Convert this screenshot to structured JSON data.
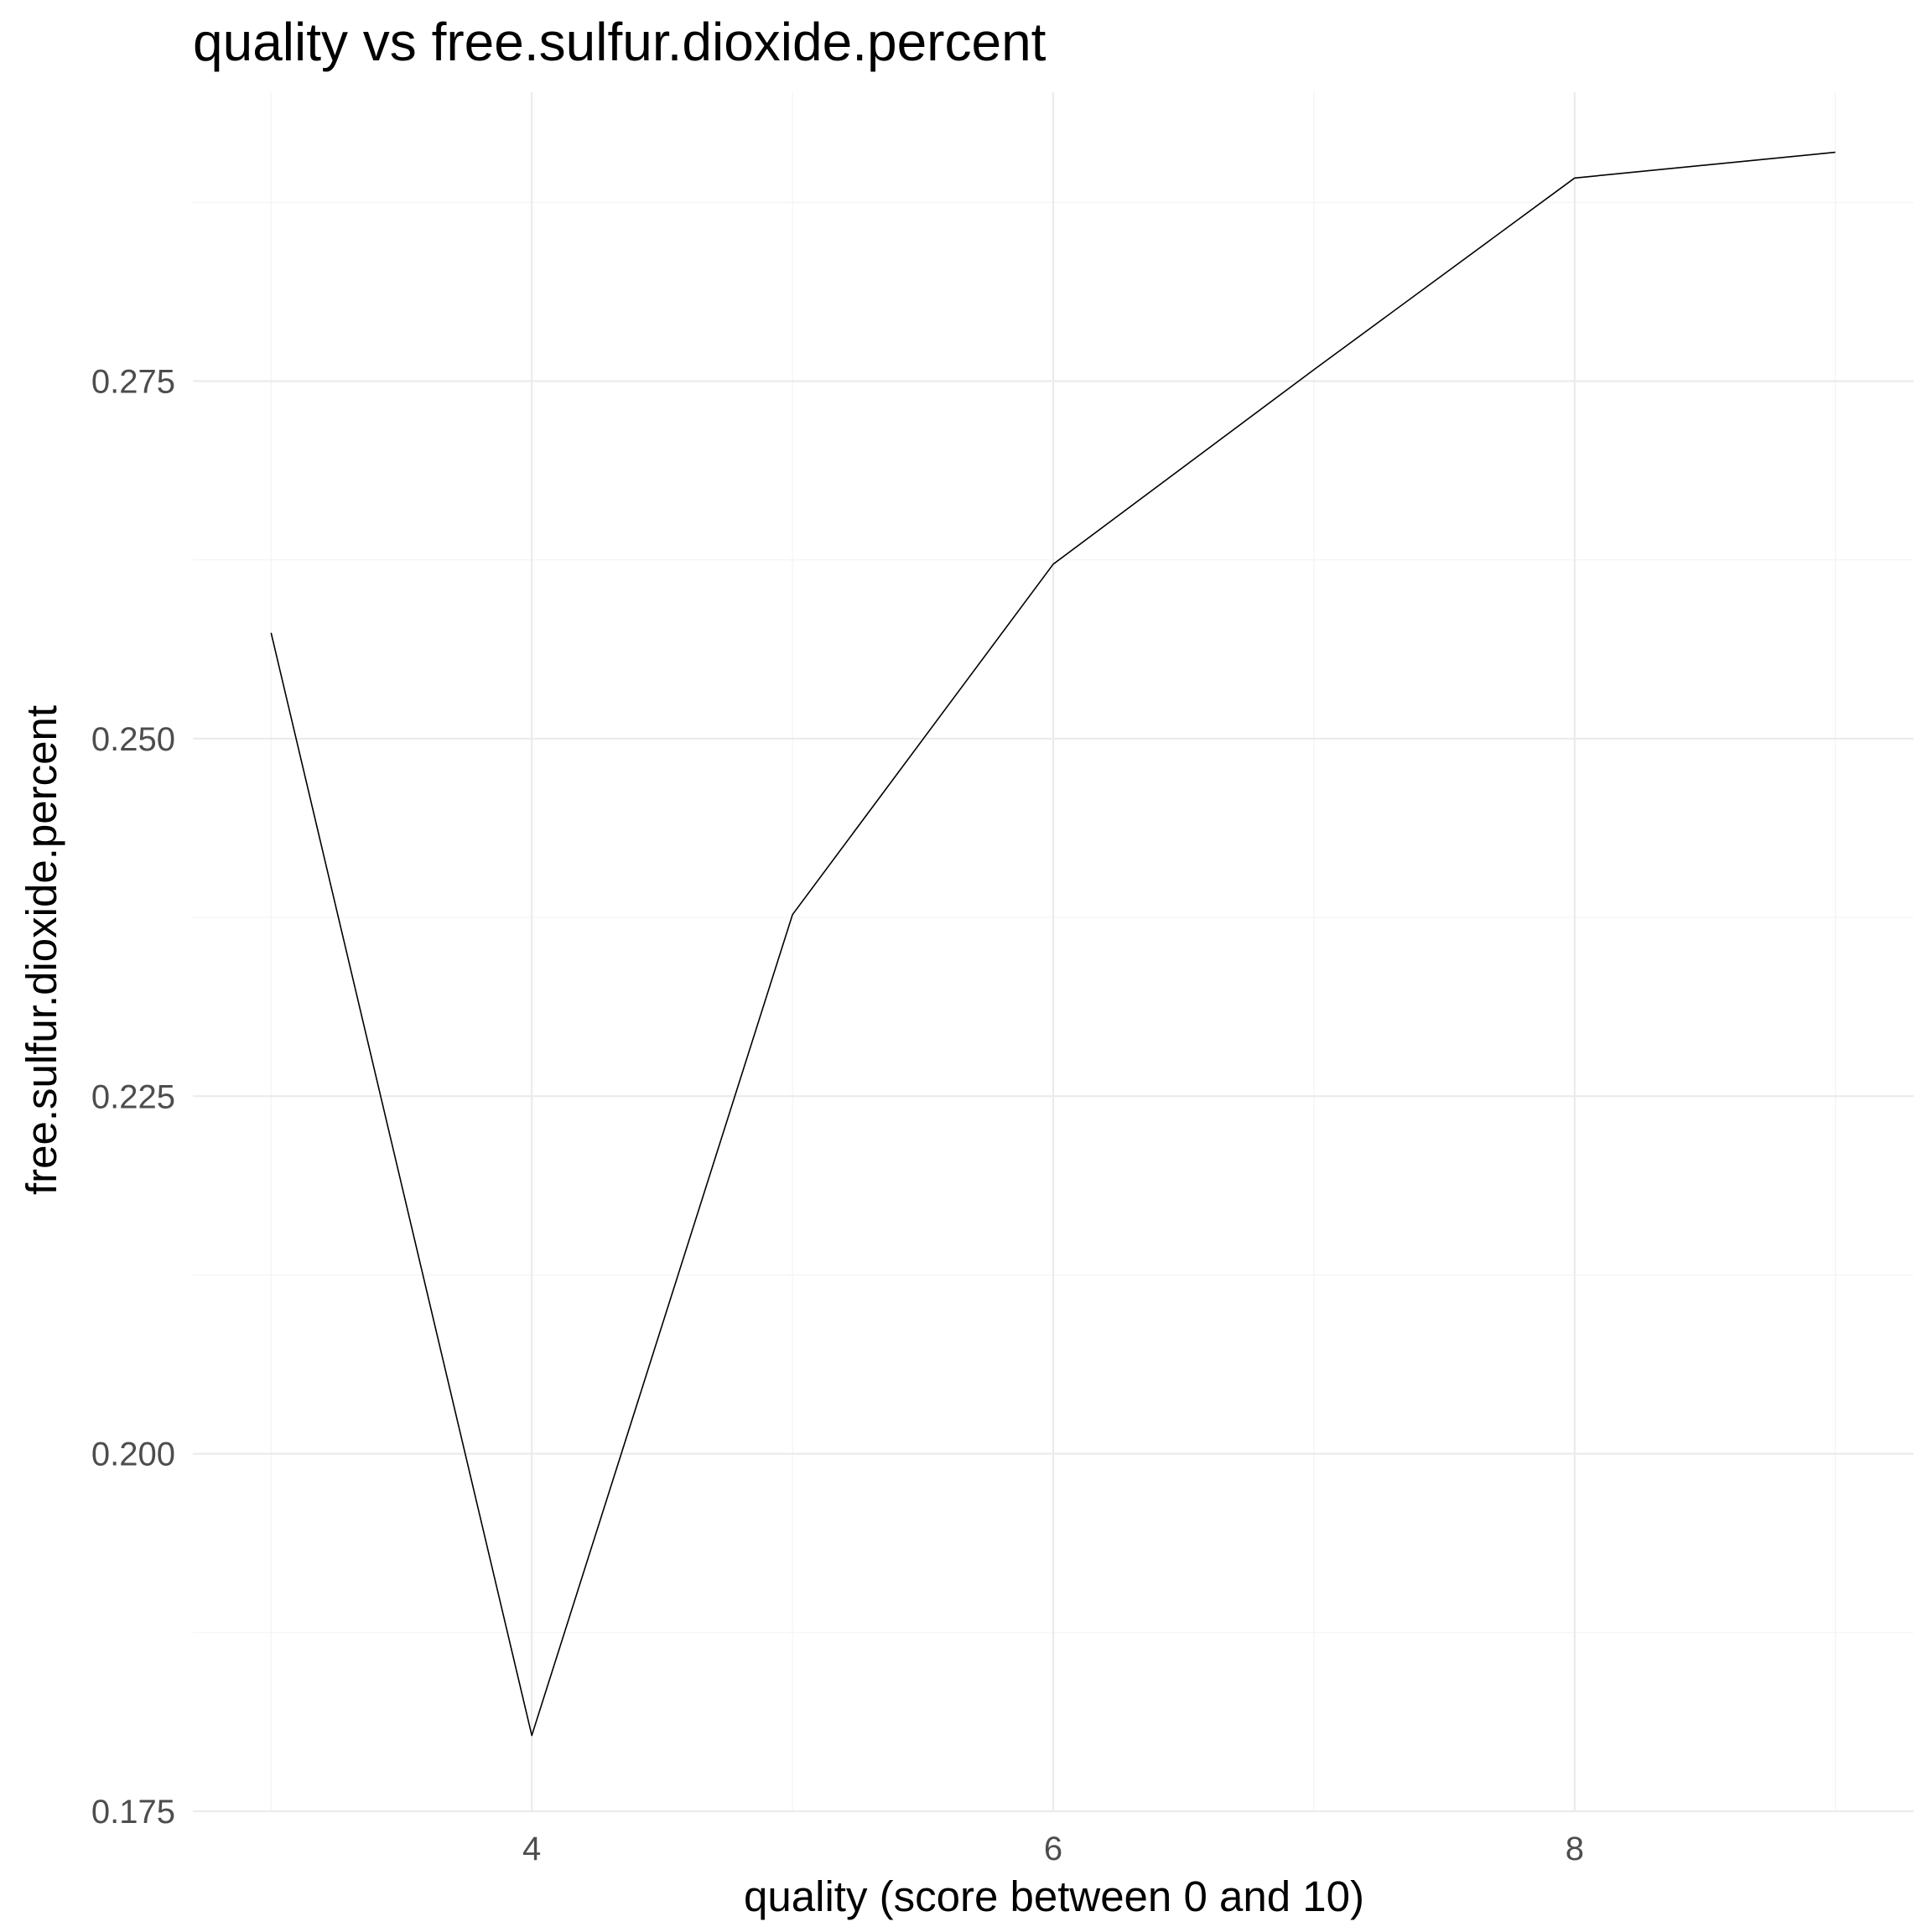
{
  "chart_data": {
    "type": "line",
    "title": "quality vs free.sulfur.dioxide.percent",
    "xlabel": "quality (score between 0 and 10)",
    "ylabel": "free.sulfur.dioxide.percent",
    "x": [
      3,
      4,
      5,
      6,
      7,
      8,
      9
    ],
    "values": [
      0.2574,
      0.1803,
      0.2377,
      0.2622,
      0.2758,
      0.2892,
      0.291
    ],
    "xlim": [
      2.7,
      9.3
    ],
    "ylim": [
      0.175,
      0.2952
    ],
    "x_ticks": [
      4,
      6,
      8
    ],
    "x_tick_labels": [
      "4",
      "6",
      "8"
    ],
    "x_minor_ticks": [
      3,
      5,
      7,
      9
    ],
    "y_ticks": [
      0.175,
      0.2,
      0.225,
      0.25,
      0.275
    ],
    "y_tick_labels": [
      "0.175",
      "0.200",
      "0.225",
      "0.250",
      "0.275"
    ],
    "y_minor_ticks": [
      0.1875,
      0.2125,
      0.2375,
      0.2625,
      0.2875
    ],
    "grid": true,
    "line_color": "#000000"
  }
}
